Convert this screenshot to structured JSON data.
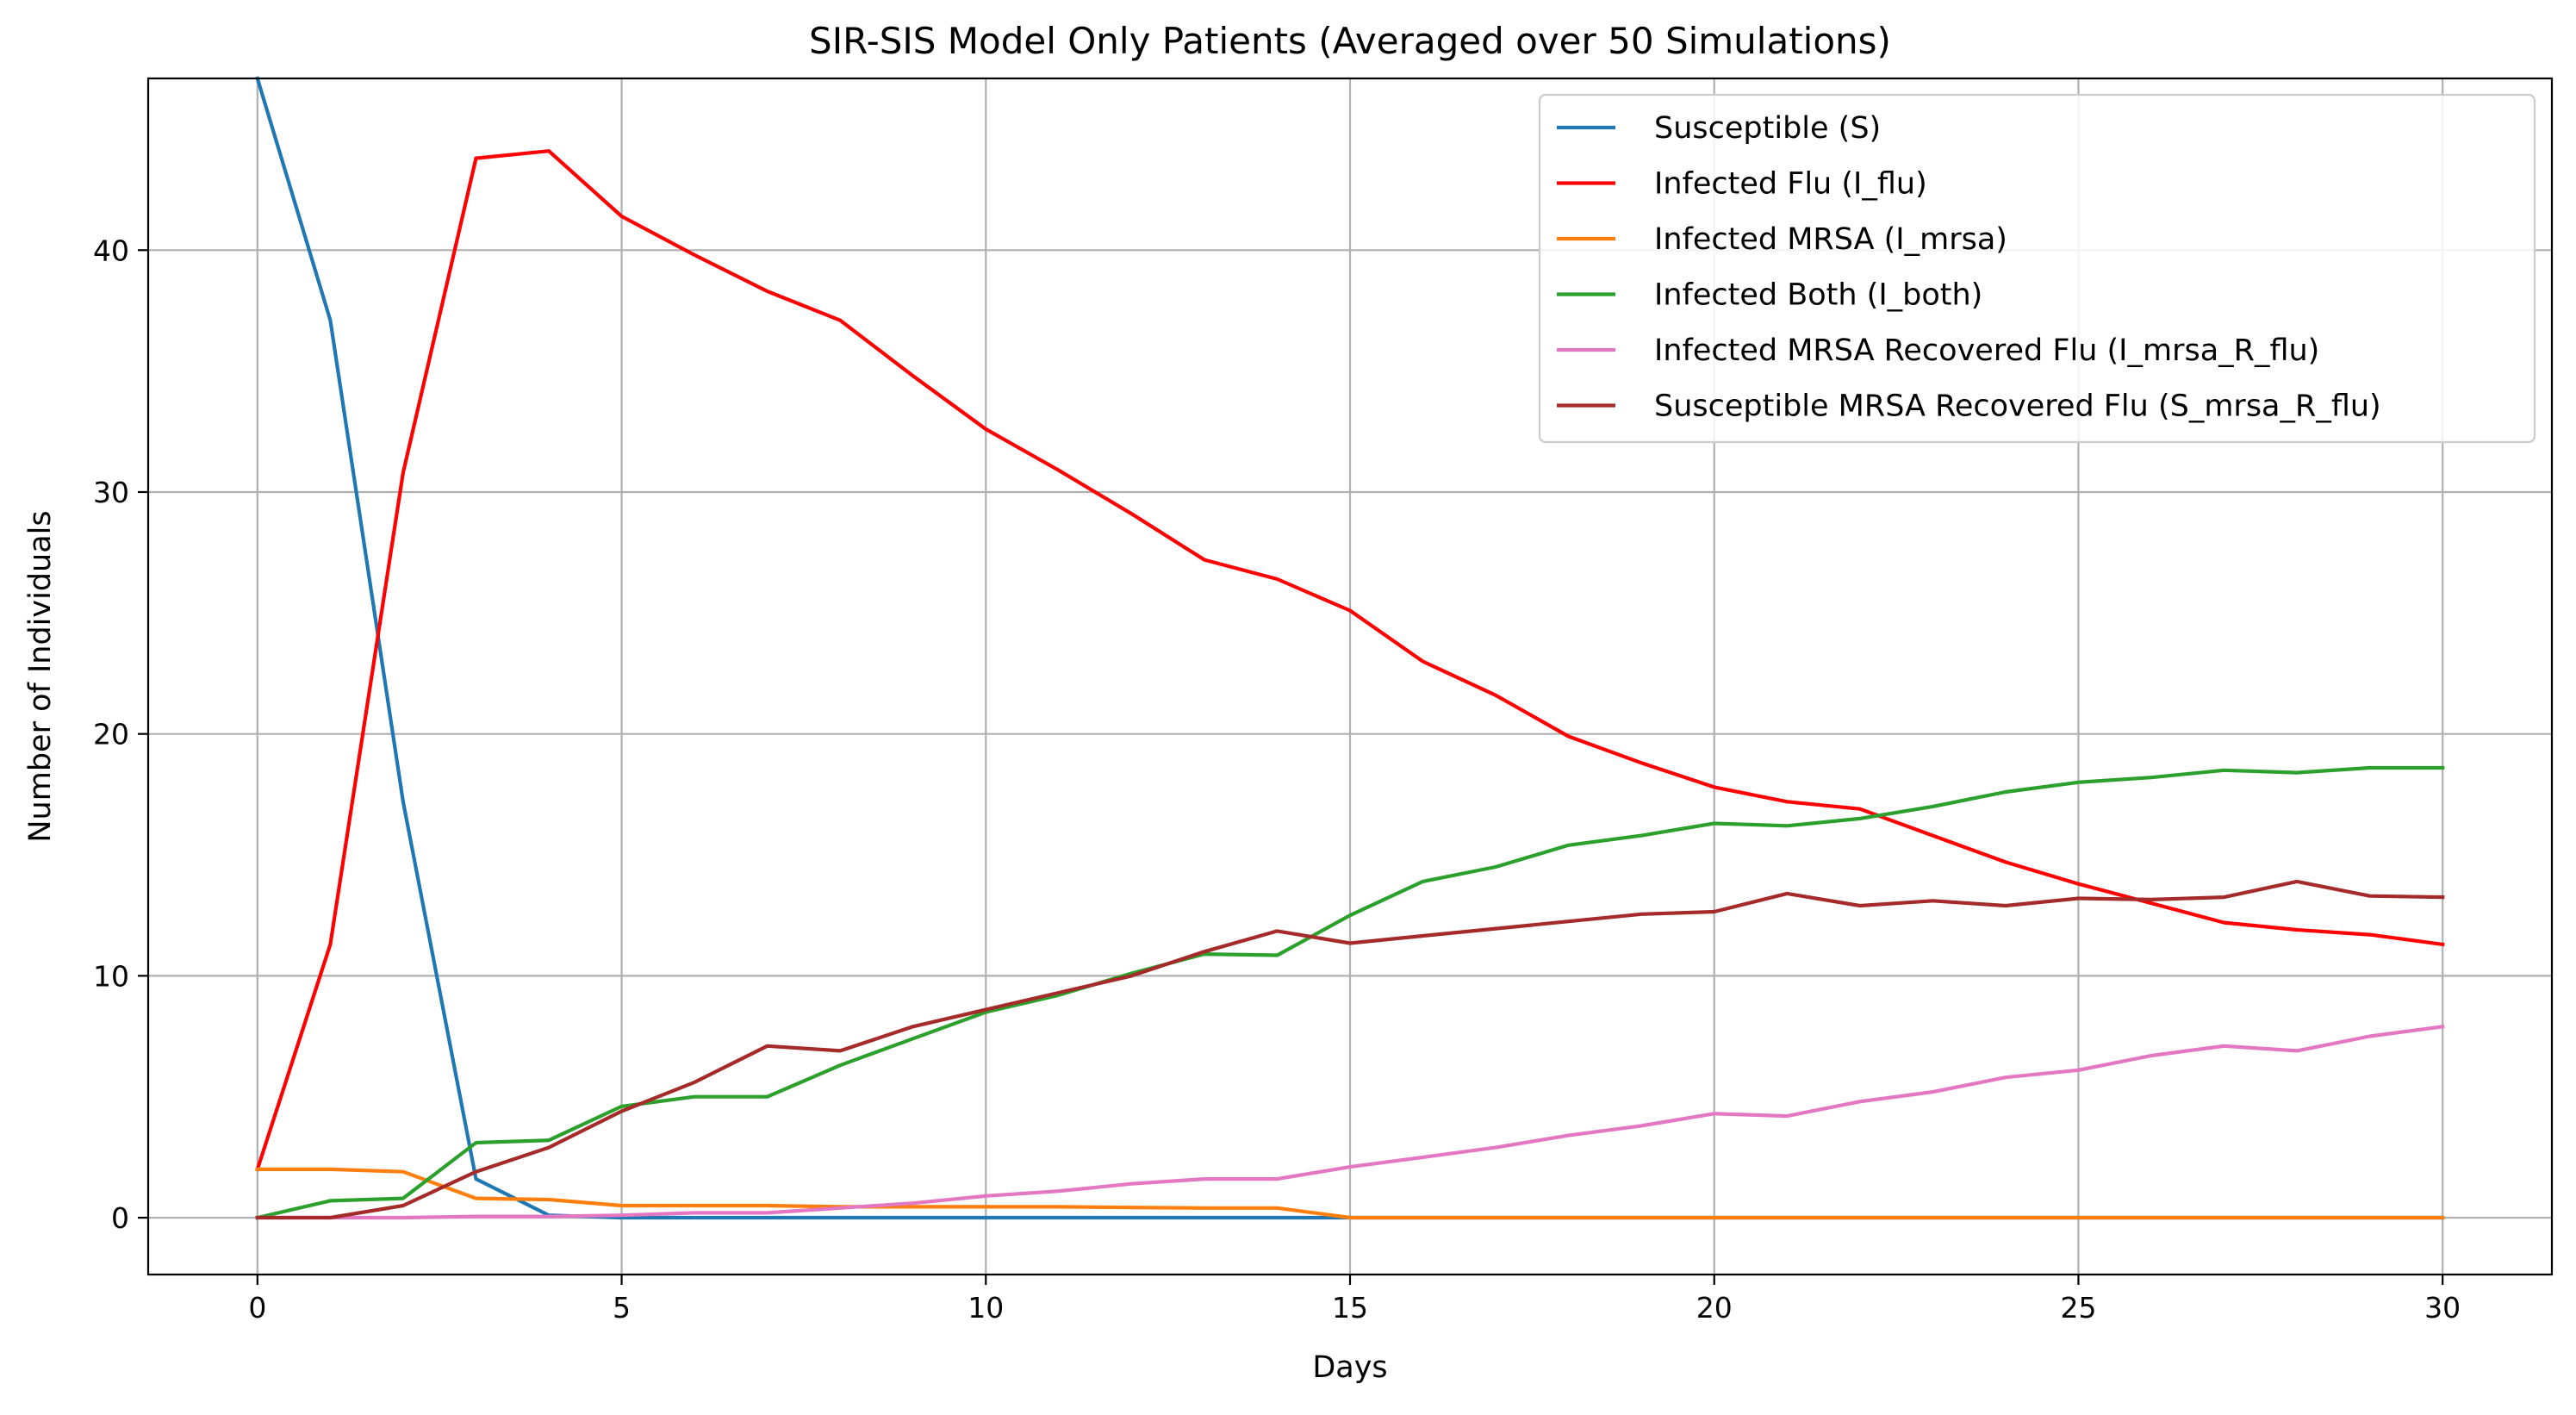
{
  "chart_data": {
    "type": "line",
    "title": "SIR-SIS Model Only Patients (Averaged over 50 Simulations)",
    "xlabel": "Days",
    "ylabel": "Number of Individuals",
    "xlim": [
      -1.5,
      31.5
    ],
    "ylim": [
      -2.35,
      47.1
    ],
    "xticks": [
      0,
      5,
      10,
      15,
      20,
      25,
      30
    ],
    "yticks": [
      0,
      10,
      20,
      30,
      40
    ],
    "grid": true,
    "legend_position": "top-right",
    "x": [
      0,
      1,
      2,
      3,
      4,
      5,
      6,
      7,
      8,
      9,
      10,
      11,
      12,
      13,
      14,
      15,
      16,
      17,
      18,
      19,
      20,
      21,
      22,
      23,
      24,
      25,
      26,
      27,
      28,
      29,
      30
    ],
    "series": [
      {
        "name": "Susceptible (S)",
        "color": "#1f77b4",
        "values": [
          47.1,
          37.1,
          17.2,
          1.6,
          0.1,
          0,
          0,
          0,
          0,
          0,
          0,
          0,
          0,
          0,
          0,
          0,
          0,
          0,
          0,
          0,
          0,
          0,
          0,
          0,
          0,
          0,
          0,
          0,
          0,
          0,
          0
        ]
      },
      {
        "name": "Infected Flu (I_flu)",
        "color": "#ff0000",
        "values": [
          2.0,
          11.3,
          30.8,
          43.8,
          44.1,
          41.4,
          39.8,
          38.3,
          37.1,
          34.8,
          32.6,
          30.9,
          29.1,
          27.2,
          26.4,
          25.1,
          23.0,
          21.6,
          19.9,
          18.8,
          17.8,
          17.2,
          16.9,
          15.8,
          14.7,
          13.8,
          13.0,
          12.2,
          11.9,
          11.7,
          11.3
        ]
      },
      {
        "name": "Infected MRSA (I_mrsa)",
        "color": "#ff7f0e",
        "values": [
          2.0,
          2.0,
          1.9,
          0.8,
          0.75,
          0.5,
          0.5,
          0.5,
          0.45,
          0.45,
          0.45,
          0.45,
          0.42,
          0.4,
          0.4,
          0,
          0,
          0,
          0,
          0,
          0,
          0,
          0,
          0,
          0,
          0,
          0,
          0,
          0,
          0,
          0
        ]
      },
      {
        "name": "Infected Both (I_both)",
        "color": "#2ca02c",
        "values": [
          0,
          0.7,
          0.8,
          3.1,
          3.2,
          4.6,
          5.0,
          5.0,
          6.3,
          7.4,
          8.5,
          9.2,
          10.1,
          10.9,
          10.85,
          12.5,
          13.9,
          14.5,
          15.4,
          15.8,
          16.3,
          16.2,
          16.5,
          17.0,
          17.6,
          18.0,
          18.2,
          18.5,
          18.4,
          18.6,
          18.6
        ]
      },
      {
        "name": "Infected MRSA Recovered Flu (I_mrsa_R_flu)",
        "color": "#e377c2",
        "values": [
          0,
          0,
          0,
          0.05,
          0.05,
          0.1,
          0.2,
          0.2,
          0.4,
          0.6,
          0.9,
          1.1,
          1.4,
          1.6,
          1.6,
          2.1,
          2.5,
          2.9,
          3.4,
          3.8,
          4.3,
          4.2,
          4.8,
          5.2,
          5.8,
          6.1,
          6.7,
          7.1,
          6.9,
          7.5,
          7.9
        ]
      },
      {
        "name": "Susceptible MRSA Recovered Flu (S_mrsa_R_flu)",
        "color": "#a52a2a",
        "values": [
          0,
          0,
          0.5,
          1.9,
          2.9,
          4.4,
          5.6,
          7.1,
          6.9,
          7.9,
          8.6,
          9.3,
          10.0,
          11.0,
          11.85,
          11.35,
          11.65,
          11.95,
          12.25,
          12.55,
          12.65,
          13.4,
          12.9,
          13.1,
          12.9,
          13.2,
          13.15,
          13.25,
          13.9,
          13.3,
          13.25
        ]
      }
    ]
  }
}
